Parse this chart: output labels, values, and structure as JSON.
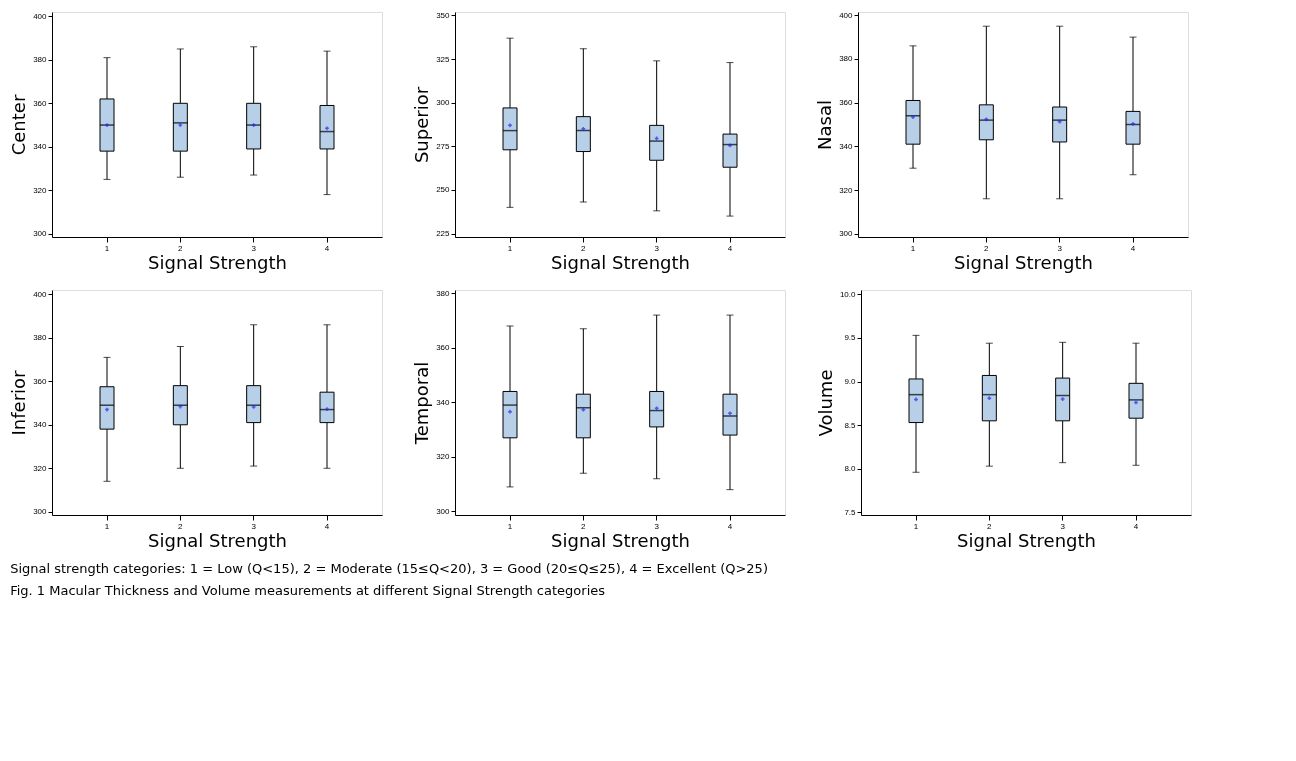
{
  "chart_data": [
    {
      "type": "box",
      "xlabel": "Signal Strength",
      "ylabel": "Center",
      "categories": [
        "1",
        "2",
        "3",
        "4"
      ],
      "ylim": [
        298.5,
        402
      ],
      "yticks": [
        300,
        320,
        340,
        360,
        380,
        400
      ],
      "grid": false,
      "marker": "cross",
      "series": [
        {
          "color": "#b8cfe8",
          "boxes": [
            {
              "low": 325,
              "q1": 338,
              "median": 350,
              "q3": 362,
              "high": 381,
              "mean": 350
            },
            {
              "low": 326,
              "q1": 338,
              "median": 351,
              "q3": 360,
              "high": 385,
              "mean": 350
            },
            {
              "low": 327,
              "q1": 339,
              "median": 350,
              "q3": 360,
              "high": 386,
              "mean": 350
            },
            {
              "low": 318,
              "q1": 339,
              "median": 347,
              "q3": 359,
              "high": 384,
              "mean": 348.5
            }
          ]
        }
      ]
    },
    {
      "type": "box",
      "xlabel": "Signal Strength",
      "ylabel": "Superior",
      "categories": [
        "1",
        "2",
        "3",
        "4"
      ],
      "ylim": [
        223,
        352
      ],
      "yticks": [
        225,
        250,
        275,
        300,
        325,
        350
      ],
      "grid": false,
      "marker": "cross",
      "series": [
        {
          "color": "#b8cfe8",
          "boxes": [
            {
              "low": 240,
              "q1": 273,
              "median": 284,
              "q3": 297,
              "high": 337,
              "mean": 287
            },
            {
              "low": 243,
              "q1": 272,
              "median": 284,
              "q3": 292,
              "high": 331,
              "mean": 285
            },
            {
              "low": 238,
              "q1": 267,
              "median": 278,
              "q3": 287,
              "high": 324,
              "mean": 279.5
            },
            {
              "low": 235,
              "q1": 263,
              "median": 276,
              "q3": 282,
              "high": 323,
              "mean": 275.5
            }
          ]
        }
      ]
    },
    {
      "type": "box",
      "xlabel": "Signal Strength",
      "ylabel": "Nasal",
      "categories": [
        "1",
        "2",
        "3",
        "4"
      ],
      "ylim": [
        298.5,
        401.5
      ],
      "yticks": [
        300,
        320,
        340,
        360,
        380,
        400
      ],
      "grid": false,
      "marker": "cross",
      "series": [
        {
          "color": "#b8cfe8",
          "boxes": [
            {
              "low": 330,
              "q1": 341,
              "median": 354,
              "q3": 361,
              "high": 386,
              "mean": 353.4
            },
            {
              "low": 316,
              "q1": 343,
              "median": 352,
              "q3": 359,
              "high": 395,
              "mean": 352.4
            },
            {
              "low": 316,
              "q1": 342,
              "median": 352,
              "q3": 358,
              "high": 395,
              "mean": 351.3
            },
            {
              "low": 327,
              "q1": 341,
              "median": 350,
              "q3": 356,
              "high": 390,
              "mean": 350.3
            }
          ]
        }
      ]
    },
    {
      "type": "box",
      "xlabel": "Signal Strength",
      "ylabel": "Inferior",
      "categories": [
        "1",
        "2",
        "3",
        "4"
      ],
      "ylim": [
        298.5,
        402
      ],
      "yticks": [
        300,
        320,
        340,
        360,
        380,
        400
      ],
      "grid": false,
      "marker": "cross",
      "series": [
        {
          "color": "#b8cfe8",
          "boxes": [
            {
              "low": 314,
              "q1": 338,
              "median": 349,
              "q3": 357.5,
              "high": 371,
              "mean": 347
            },
            {
              "low": 320,
              "q1": 340,
              "median": 349,
              "q3": 358,
              "high": 376,
              "mean": 348.4
            },
            {
              "low": 321,
              "q1": 341,
              "median": 349,
              "q3": 358,
              "high": 386,
              "mean": 348.2
            },
            {
              "low": 320,
              "q1": 341,
              "median": 347,
              "q3": 355,
              "high": 386,
              "mean": 347.2
            }
          ]
        }
      ]
    },
    {
      "type": "box",
      "xlabel": "Signal Strength",
      "ylabel": "Temporal",
      "categories": [
        "1",
        "2",
        "3",
        "4"
      ],
      "ylim": [
        298.7,
        381.2
      ],
      "yticks": [
        300,
        320,
        340,
        360,
        380
      ],
      "grid": false,
      "marker": "cross",
      "series": [
        {
          "color": "#b8cfe8",
          "boxes": [
            {
              "low": 309,
              "q1": 327,
              "median": 339,
              "q3": 344,
              "high": 368,
              "mean": 336.6
            },
            {
              "low": 314,
              "q1": 327,
              "median": 338,
              "q3": 343,
              "high": 367,
              "mean": 337.3
            },
            {
              "low": 312,
              "q1": 331,
              "median": 337,
              "q3": 344,
              "high": 372,
              "mean": 337.8
            },
            {
              "low": 308,
              "q1": 328,
              "median": 335,
              "q3": 343,
              "high": 372,
              "mean": 336
            }
          ]
        }
      ]
    },
    {
      "type": "box",
      "xlabel": "Signal Strength",
      "ylabel": "Volume",
      "categories": [
        "1",
        "2",
        "3",
        "4"
      ],
      "ylim": [
        7.47,
        10.05
      ],
      "yticks": [
        {
          "value": 7.5,
          "label": "7.5"
        },
        {
          "value": 8,
          "label": "8.0"
        },
        {
          "value": 8.5,
          "label": "8.5"
        },
        {
          "value": 9,
          "label": "9.0"
        },
        {
          "value": 9.5,
          "label": "9.5"
        },
        {
          "value": 10,
          "label": "10.0"
        }
      ],
      "grid": false,
      "marker": "cross",
      "series": [
        {
          "color": "#b8cfe8",
          "boxes": [
            {
              "low": 7.96,
              "q1": 8.53,
              "median": 8.85,
              "q3": 9.03,
              "high": 9.53,
              "mean": 8.795
            },
            {
              "low": 8.03,
              "q1": 8.55,
              "median": 8.85,
              "q3": 9.07,
              "high": 9.44,
              "mean": 8.81
            },
            {
              "low": 8.07,
              "q1": 8.55,
              "median": 8.84,
              "q3": 9.04,
              "high": 9.45,
              "mean": 8.8
            },
            {
              "low": 8.04,
              "q1": 8.58,
              "median": 8.79,
              "q3": 8.98,
              "high": 9.44,
              "mean": 8.76
            }
          ]
        }
      ],
      "annotations": [
        "Signal strength categories: 1 = Low (Q<15), 2 = Moderate (15≤Q<20), 3 = Good (20≤Q≤25), 4 = Excellent (Q>25)",
        "Fig. 1  Macular Thickness and Volume measurements at different Signal Strength categories"
      ]
    }
  ]
}
